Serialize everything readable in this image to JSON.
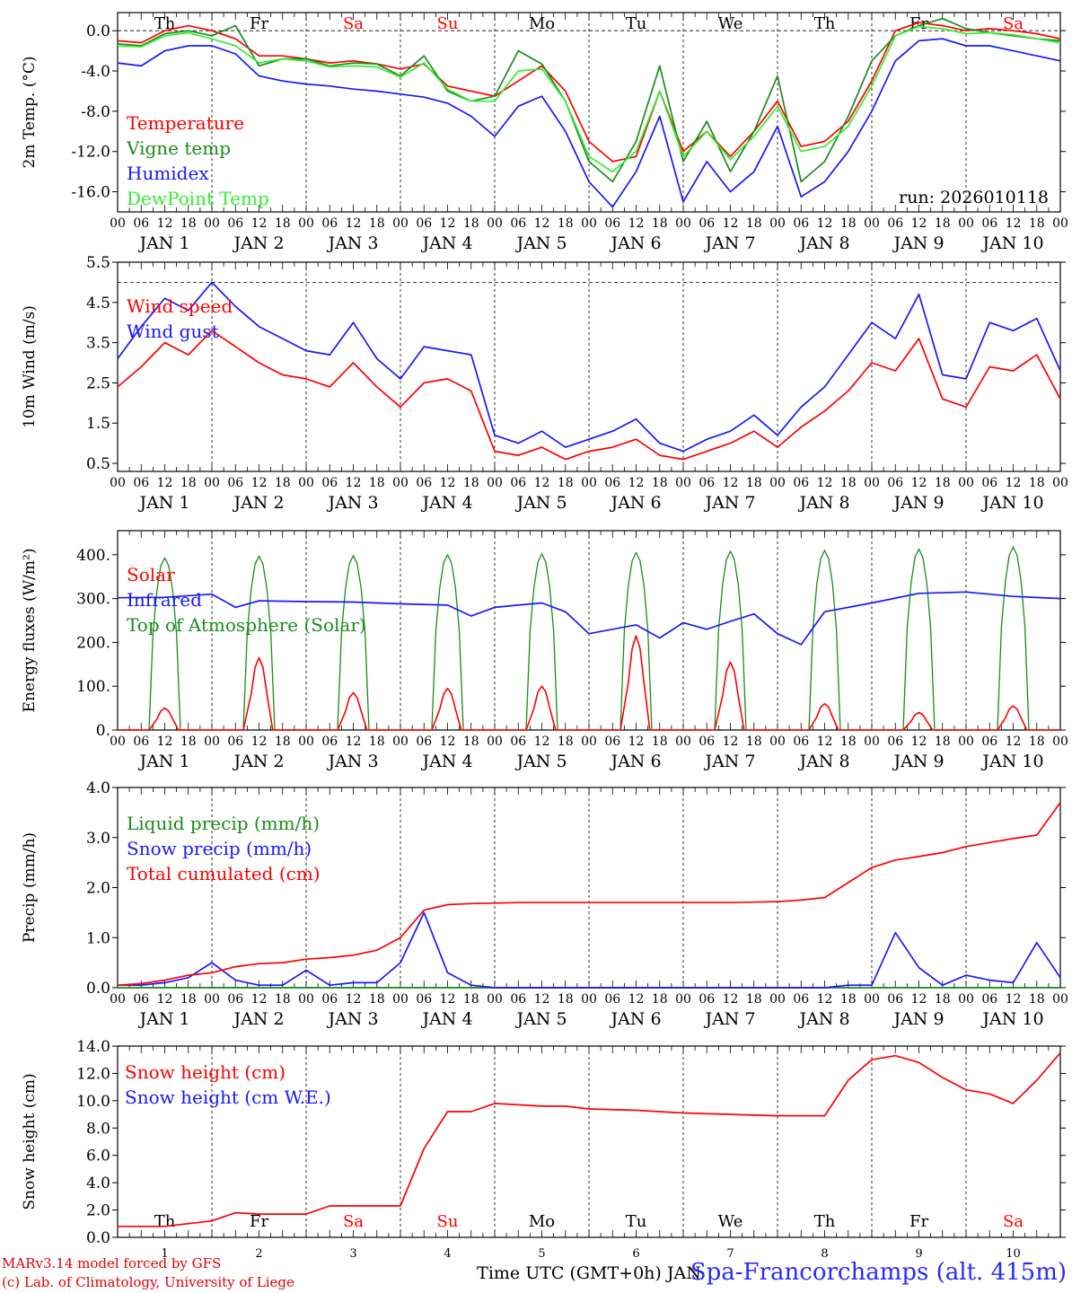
{
  "run_label": "run: 2026010118",
  "footer": {
    "credit_line1": "MARv3.14 model forced by GFS",
    "credit_line2": "(c) Lab. of Climatology, University of Liege",
    "xlabel": "Time UTC (GMT+0h) JAN",
    "station": "Spa-Francorchamps (alt. 415m)"
  },
  "colors": {
    "red": "#ff0000",
    "green": "#1a8c1a",
    "blue": "#1818ff",
    "lightgreen": "#33ee33",
    "weekend": "#ff0000",
    "weekday": "#000000"
  },
  "days": {
    "weekday_labels": [
      "Th",
      "Fr",
      "Sa",
      "Su",
      "Mo",
      "Tu",
      "We",
      "Th",
      "Fr",
      "Sa"
    ],
    "weekend_flags": [
      false,
      false,
      true,
      true,
      false,
      false,
      false,
      false,
      false,
      true
    ],
    "date_labels": [
      "JAN  1",
      "JAN  2",
      "JAN  3",
      "JAN  4",
      "JAN  5",
      "JAN  6",
      "JAN  7",
      "JAN  8",
      "JAN  9",
      "JAN 10"
    ],
    "day_numbers": [
      "1",
      "2",
      "3",
      "4",
      "5",
      "6",
      "7",
      "8",
      "9",
      "10"
    ],
    "hour_ticks": [
      "00",
      "06",
      "12",
      "18"
    ],
    "final_tick": "00"
  },
  "chart_data": [
    {
      "type": "line",
      "ylabel": "2m Temp. (°C)",
      "ylim": [
        -18,
        1.8
      ],
      "yticks": [
        0,
        -4,
        -8,
        -12,
        -16
      ],
      "ytick_labels": [
        "0.0",
        "-4.0",
        "-8.0",
        "-12.0",
        "-16.0"
      ],
      "ref_line": 0,
      "x_hours": [
        0,
        6,
        12,
        18,
        24,
        30,
        36,
        42,
        48,
        54,
        60,
        66,
        72,
        78,
        84,
        90,
        96,
        102,
        108,
        114,
        120,
        126,
        132,
        138,
        144,
        150,
        156,
        162,
        168,
        174,
        180,
        186,
        192,
        198,
        204,
        210,
        216,
        222,
        228,
        234,
        240
      ],
      "series": [
        {
          "name": "Temperature",
          "color": "red",
          "values": [
            -1,
            -1.2,
            0,
            0.5,
            0,
            -0.8,
            -2.5,
            -2.5,
            -2.8,
            -3.2,
            -3,
            -3.3,
            -3.8,
            -3.3,
            -5.5,
            -6,
            -6.5,
            -5,
            -3.5,
            -6,
            -11,
            -13,
            -12.5,
            -6,
            -12,
            -10,
            -12.5,
            -10,
            -7,
            -11.5,
            -11,
            -9,
            -5,
            0,
            0.8,
            0.5,
            0,
            0.2,
            0,
            -0.3,
            -0.8
          ]
        },
        {
          "name": "Vigne temp",
          "color": "green",
          "values": [
            -1.3,
            -1.5,
            -0.3,
            0,
            -0.5,
            0.5,
            -3.5,
            -2.8,
            -2.8,
            -3.5,
            -3.2,
            -3.3,
            -4.5,
            -2.5,
            -6,
            -7,
            -6.5,
            -2,
            -3.3,
            -7,
            -13,
            -15,
            -11,
            -3.5,
            -13,
            -9,
            -14,
            -10,
            -4.5,
            -15,
            -13,
            -8.5,
            -3,
            -0.5,
            0.5,
            1.2,
            0.2,
            -0.2,
            -0.5,
            -0.8,
            -1
          ]
        },
        {
          "name": "Humidex",
          "color": "blue",
          "values": [
            -3.2,
            -3.5,
            -2,
            -1.5,
            -1.5,
            -2.3,
            -4.5,
            -5,
            -5.3,
            -5.5,
            -5.8,
            -6,
            -6.3,
            -6.6,
            -7.2,
            -8.5,
            -10.5,
            -7.5,
            -6.5,
            -10,
            -15,
            -17.5,
            -14,
            -8.5,
            -17,
            -13,
            -16,
            -14,
            -9.5,
            -16.5,
            -15,
            -12,
            -8,
            -3,
            -1,
            -0.8,
            -1.5,
            -1.5,
            -2,
            -2.5,
            -3
          ]
        },
        {
          "name": "DewPoint Temp",
          "color": "lightgreen",
          "values": [
            -1.5,
            -1.6,
            -0.5,
            -0.2,
            -0.8,
            -1.5,
            -3.2,
            -2.8,
            -3,
            -3.6,
            -3.5,
            -3.6,
            -4.6,
            -3.2,
            -5.8,
            -7,
            -7,
            -4,
            -3.8,
            -7,
            -12.5,
            -14,
            -12,
            -6,
            -12.5,
            -10,
            -12.8,
            -10.5,
            -7.5,
            -12,
            -11.5,
            -9.5,
            -5.5,
            -0.5,
            0.4,
            0.2,
            -0.3,
            -0.2,
            -0.4,
            -0.8,
            -1.2
          ]
        }
      ]
    },
    {
      "type": "line",
      "ylabel": "10m Wind (m/s)",
      "ylim": [
        0.3,
        5.5
      ],
      "yticks": [
        0.5,
        1.5,
        2.5,
        3.5,
        4.5,
        5.5
      ],
      "ytick_labels": [
        "0.5",
        "1.5",
        "2.5",
        "3.5",
        "4.5",
        "5.5"
      ],
      "ref_line": 5.0,
      "x_hours": [
        0,
        6,
        12,
        18,
        24,
        30,
        36,
        42,
        48,
        54,
        60,
        66,
        72,
        78,
        84,
        90,
        96,
        102,
        108,
        114,
        120,
        126,
        132,
        138,
        144,
        150,
        156,
        162,
        168,
        174,
        180,
        186,
        192,
        198,
        204,
        210,
        216,
        222,
        228,
        234,
        240
      ],
      "series": [
        {
          "name": "Wind speed",
          "color": "red",
          "values": [
            2.4,
            2.9,
            3.5,
            3.2,
            3.8,
            3.4,
            3.0,
            2.7,
            2.6,
            2.4,
            3.0,
            2.4,
            1.9,
            2.5,
            2.6,
            2.3,
            0.8,
            0.7,
            0.9,
            0.6,
            0.8,
            0.9,
            1.1,
            0.7,
            0.6,
            0.8,
            1.0,
            1.3,
            0.9,
            1.4,
            1.8,
            2.3,
            3.0,
            2.8,
            3.6,
            2.1,
            1.9,
            2.9,
            2.8,
            3.2,
            2.1
          ]
        },
        {
          "name": "Wind gust",
          "color": "blue",
          "values": [
            3.1,
            3.9,
            4.6,
            4.3,
            5.0,
            4.4,
            3.9,
            3.6,
            3.3,
            3.2,
            4.0,
            3.1,
            2.6,
            3.4,
            3.3,
            3.2,
            1.2,
            1.0,
            1.3,
            0.9,
            1.1,
            1.3,
            1.6,
            1.0,
            0.8,
            1.1,
            1.3,
            1.7,
            1.2,
            1.9,
            2.4,
            3.2,
            4.0,
            3.6,
            4.7,
            2.7,
            2.6,
            4.0,
            3.8,
            4.1,
            2.8
          ]
        }
      ]
    },
    {
      "type": "line",
      "ylabel": "Energy fluxes (W/m²)",
      "ylim": [
        0,
        455
      ],
      "yticks": [
        0,
        100,
        200,
        300,
        400
      ],
      "ytick_labels": [
        "0.",
        "100.",
        "200.",
        "300.",
        "400."
      ],
      "ref_line": null,
      "day_peaks": {
        "Solar": [
          50,
          165,
          85,
          95,
          100,
          215,
          155,
          60,
          40,
          55
        ],
        "Top of Atmosphere (Solar)": [
          393,
          397,
          398,
          400,
          402,
          405,
          408,
          410,
          413,
          418
        ]
      },
      "x_hours": [
        0,
        12,
        24,
        30,
        36,
        48,
        60,
        72,
        84,
        90,
        96,
        102,
        108,
        114,
        120,
        126,
        132,
        138,
        144,
        150,
        156,
        162,
        168,
        174,
        180,
        192,
        204,
        216,
        228,
        240
      ],
      "series": [
        {
          "name": "Infrared",
          "color": "blue",
          "values": [
            302,
            303,
            310,
            280,
            295,
            293,
            292,
            288,
            285,
            260,
            280,
            285,
            290,
            270,
            220,
            230,
            240,
            210,
            245,
            230,
            248,
            265,
            220,
            195,
            270,
            290,
            312,
            315,
            305,
            300
          ]
        }
      ]
    },
    {
      "type": "line",
      "ylabel": "Precip (mm/h)",
      "ylim": [
        0,
        4.0
      ],
      "yticks": [
        0,
        1,
        2,
        3,
        4
      ],
      "ytick_labels": [
        "0.0",
        "1.0",
        "2.0",
        "3.0",
        "4.0"
      ],
      "ref_line": null,
      "x_hours": [
        0,
        6,
        12,
        18,
        24,
        30,
        36,
        42,
        48,
        54,
        60,
        66,
        72,
        78,
        84,
        90,
        96,
        102,
        108,
        114,
        120,
        126,
        132,
        138,
        144,
        150,
        156,
        162,
        168,
        174,
        180,
        186,
        192,
        198,
        204,
        210,
        216,
        222,
        228,
        234,
        240
      ],
      "series": [
        {
          "name": "Liquid precip (mm/h)",
          "color": "green",
          "values": [
            0,
            0,
            0,
            0,
            0,
            0,
            0,
            0,
            0,
            0,
            0,
            0,
            0,
            0,
            0,
            0,
            0,
            0,
            0,
            0,
            0,
            0,
            0,
            0,
            0,
            0,
            0,
            0,
            0,
            0,
            0,
            0,
            0,
            0,
            0,
            0,
            0,
            0,
            0,
            0,
            0
          ]
        },
        {
          "name": "Snow precip (mm/h)",
          "color": "blue",
          "values": [
            0.05,
            0.05,
            0.1,
            0.2,
            0.5,
            0.15,
            0.05,
            0.05,
            0.35,
            0.05,
            0.1,
            0.1,
            0.5,
            1.5,
            0.3,
            0.05,
            0,
            0,
            0,
            0,
            0,
            0,
            0,
            0,
            0,
            0,
            0,
            0,
            0,
            0,
            0,
            0.05,
            0.05,
            1.1,
            0.4,
            0.05,
            0.25,
            0.15,
            0.1,
            0.9,
            0.2
          ]
        },
        {
          "name": "Total cumulated (cm)",
          "color": "red",
          "values": [
            0.05,
            0.08,
            0.15,
            0.25,
            0.3,
            0.42,
            0.48,
            0.5,
            0.57,
            0.6,
            0.65,
            0.75,
            1.0,
            1.55,
            1.66,
            1.68,
            1.69,
            1.7,
            1.7,
            1.7,
            1.7,
            1.7,
            1.7,
            1.7,
            1.7,
            1.7,
            1.7,
            1.71,
            1.72,
            1.75,
            1.8,
            2.1,
            2.4,
            2.55,
            2.62,
            2.7,
            2.82,
            2.9,
            2.98,
            3.05,
            3.7
          ]
        }
      ]
    },
    {
      "type": "line",
      "ylabel": "Snow height (cm)",
      "ylim": [
        0,
        14.0
      ],
      "yticks": [
        0,
        2,
        4,
        6,
        8,
        10,
        12,
        14
      ],
      "ytick_labels": [
        "0.0",
        "2.0",
        "4.0",
        "6.0",
        "8.0",
        "10.0",
        "12.0",
        "14.0"
      ],
      "ref_line": null,
      "x_hours": [
        0,
        12,
        24,
        30,
        36,
        48,
        54,
        60,
        66,
        72,
        78,
        84,
        90,
        96,
        102,
        108,
        114,
        120,
        132,
        144,
        156,
        168,
        180,
        186,
        192,
        198,
        204,
        210,
        216,
        222,
        228,
        234,
        240
      ],
      "series": [
        {
          "name": "Snow height (cm)",
          "color": "red",
          "values": [
            0.8,
            0.8,
            1.2,
            1.8,
            1.7,
            1.7,
            2.3,
            2.3,
            2.3,
            2.3,
            6.5,
            9.2,
            9.2,
            9.8,
            9.7,
            9.6,
            9.6,
            9.4,
            9.3,
            9.1,
            9.0,
            8.9,
            8.9,
            11.5,
            13.0,
            13.3,
            12.8,
            11.7,
            10.8,
            10.5,
            9.8,
            11.5,
            13.5
          ]
        },
        {
          "name": "Snow height (cm W.E.)",
          "color": "blue",
          "values": []
        }
      ]
    }
  ]
}
